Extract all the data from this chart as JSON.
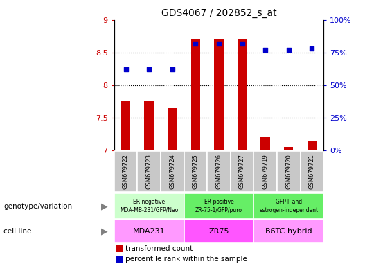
{
  "title": "GDS4067 / 202852_s_at",
  "samples": [
    "GSM679722",
    "GSM679723",
    "GSM679724",
    "GSM679725",
    "GSM679726",
    "GSM679727",
    "GSM679719",
    "GSM679720",
    "GSM679721"
  ],
  "red_values": [
    7.75,
    7.75,
    7.65,
    8.7,
    8.7,
    8.7,
    7.2,
    7.05,
    7.15
  ],
  "blue_values": [
    0.62,
    0.62,
    0.62,
    0.82,
    0.82,
    0.82,
    0.77,
    0.77,
    0.78
  ],
  "ylim_left": [
    7.0,
    9.0
  ],
  "ylim_right": [
    0.0,
    1.0
  ],
  "yticks_left": [
    7.0,
    7.5,
    8.0,
    8.5,
    9.0
  ],
  "yticks_right": [
    0.0,
    0.25,
    0.5,
    0.75,
    1.0
  ],
  "ytick_labels_left": [
    "7",
    "7.5",
    "8",
    "8.5",
    "9"
  ],
  "ytick_labels_right": [
    "0%",
    "25%",
    "50%",
    "75%",
    "100%"
  ],
  "dotted_lines": [
    7.5,
    8.0,
    8.5
  ],
  "groups": [
    {
      "start": 0,
      "end": 3,
      "genotype": "ER negative\nMDA-MB-231/GFP/Neo",
      "cell_line": "MDA231",
      "geno_color": "#ccffcc",
      "cell_color": "#ff99ff"
    },
    {
      "start": 3,
      "end": 6,
      "genotype": "ER positive\nZR-75-1/GFP/puro",
      "cell_line": "ZR75",
      "geno_color": "#66ee66",
      "cell_color": "#ff55ff"
    },
    {
      "start": 6,
      "end": 9,
      "genotype": "GFP+ and\nestrogen-independent",
      "cell_line": "B6TC hybrid",
      "geno_color": "#66ee66",
      "cell_color": "#ff99ff"
    }
  ],
  "legend_red": "transformed count",
  "legend_blue": "percentile rank within the sample",
  "left_label": "genotype/variation",
  "left_label2": "cell line",
  "bar_color": "#cc0000",
  "dot_color": "#0000cc",
  "sample_box_color": "#c8c8c8",
  "title_fontsize": 10
}
